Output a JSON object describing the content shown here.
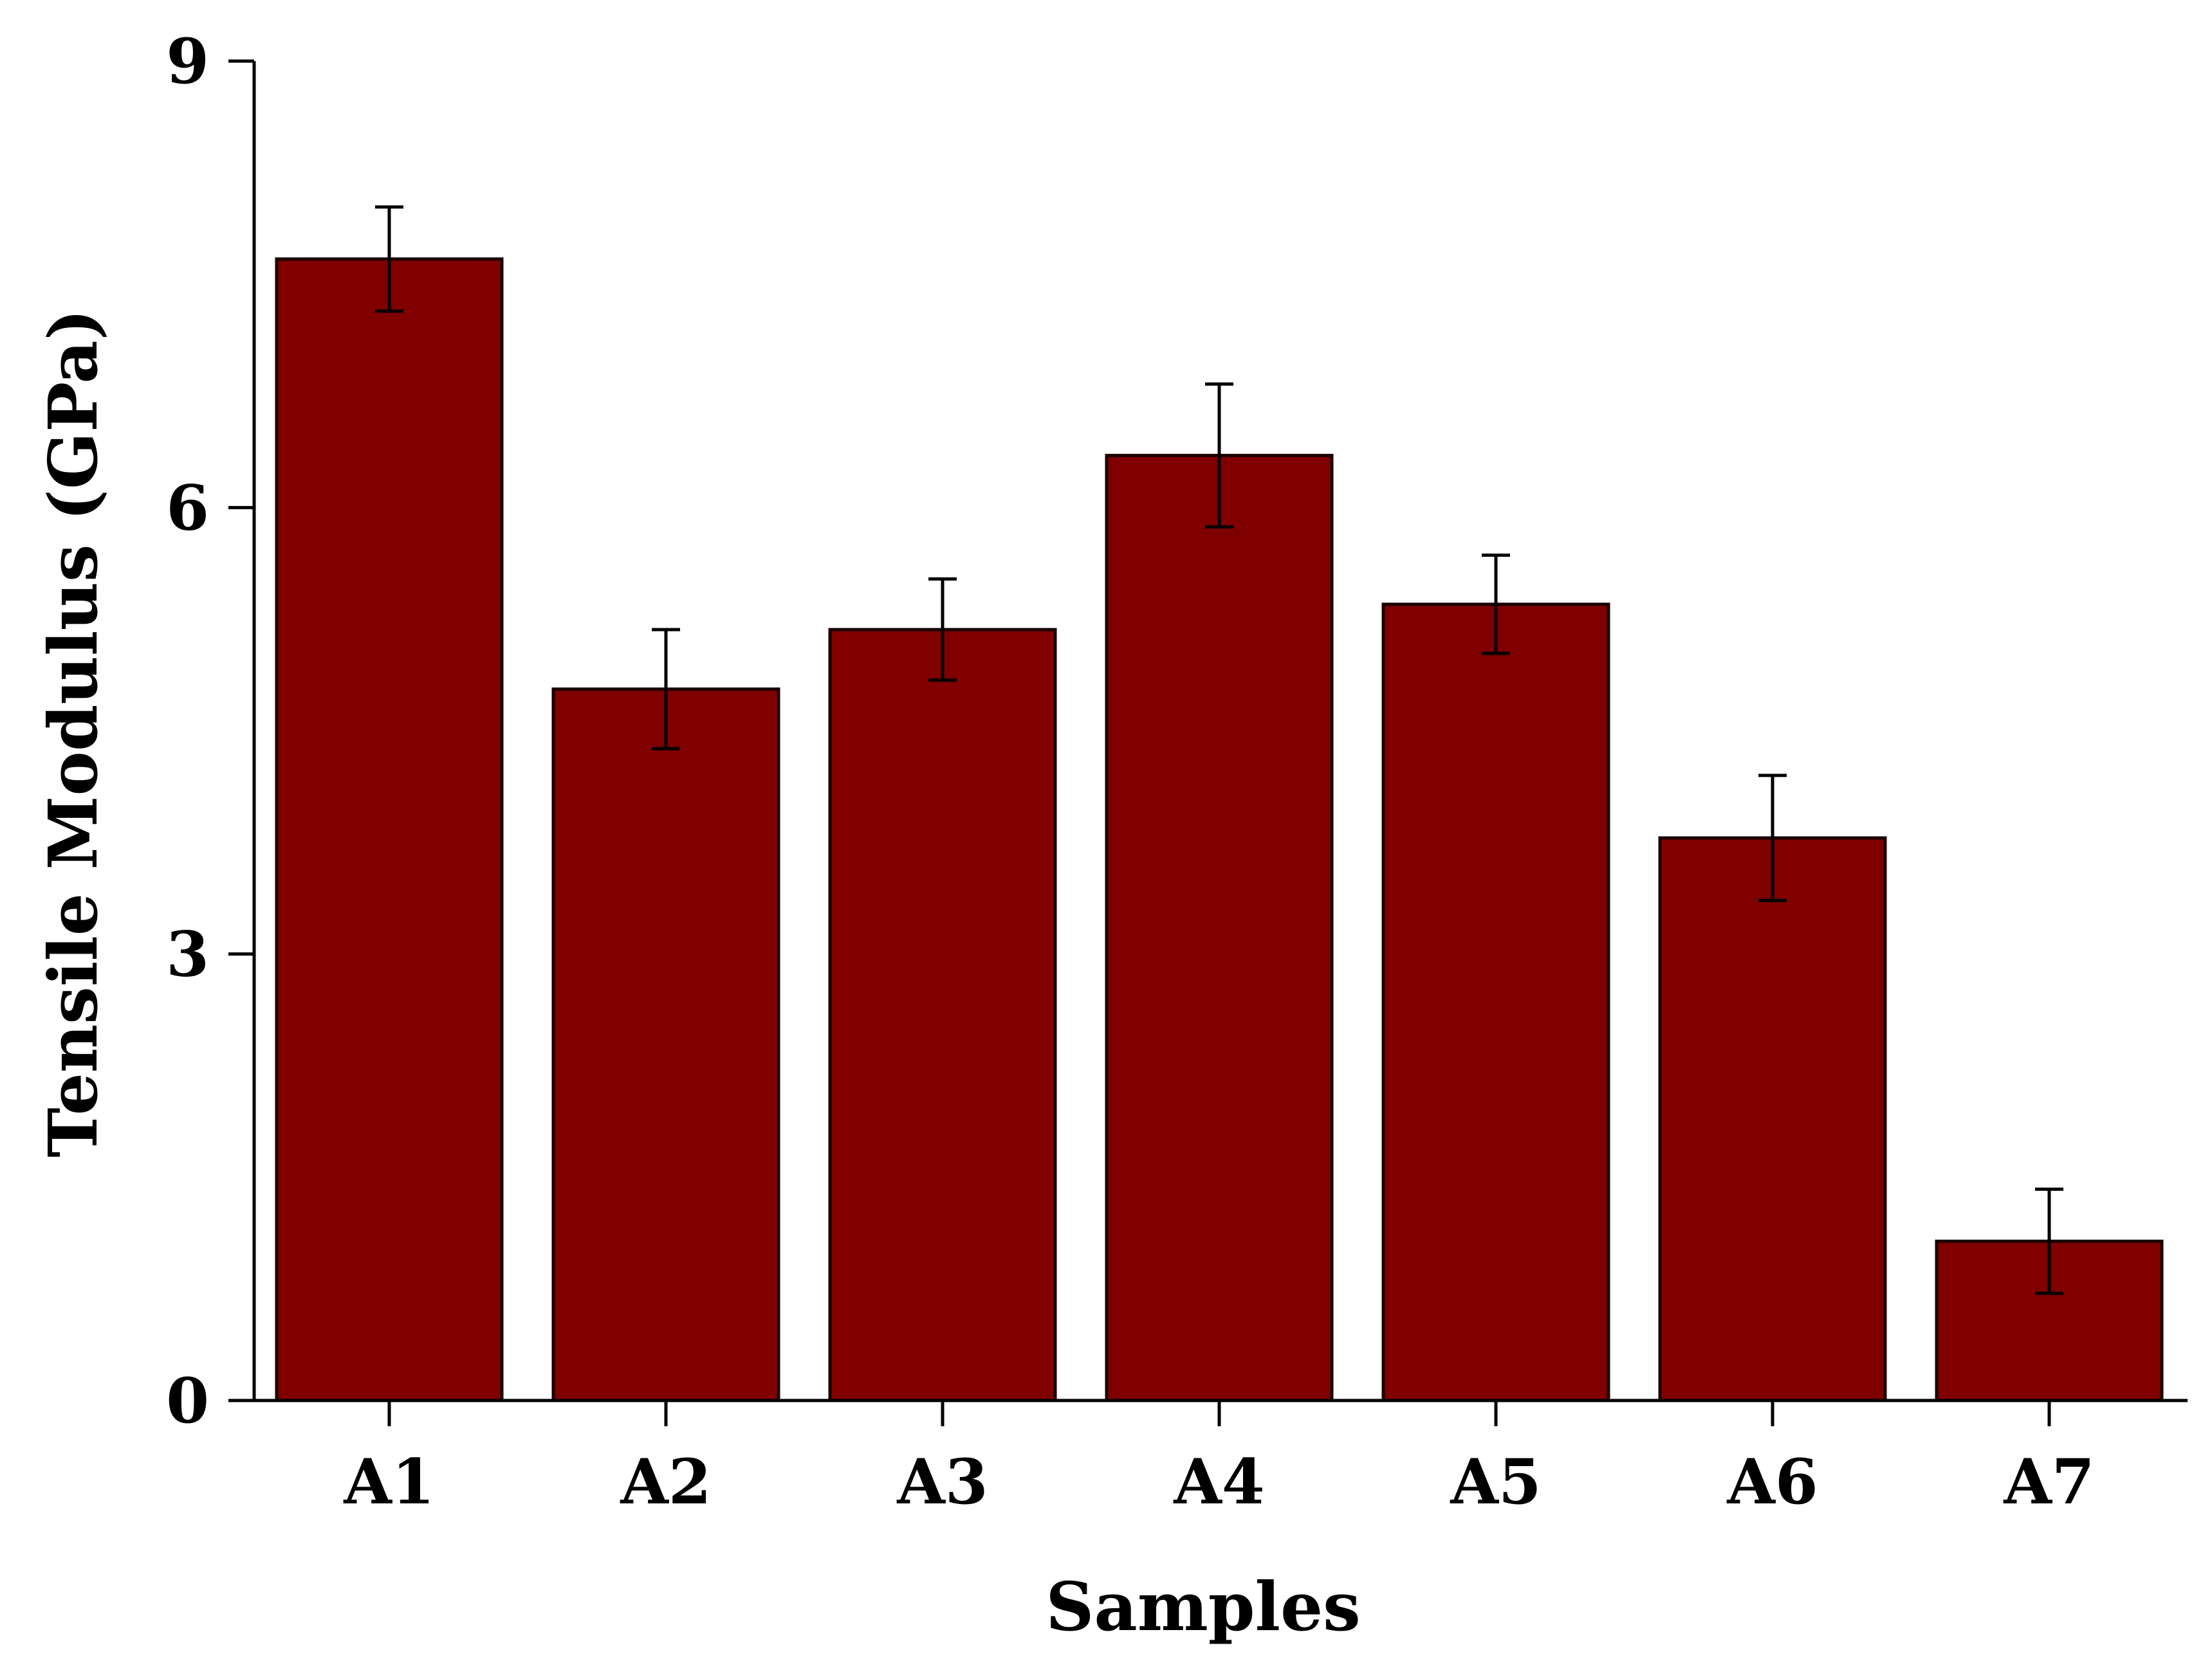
{
  "chart_data": {
    "type": "bar",
    "title": "",
    "xlabel": "Samples",
    "ylabel": "Tensile Modulus (GPa)",
    "categories": [
      "A1",
      "A2",
      "A3",
      "A4",
      "A5",
      "A6",
      "A7"
    ],
    "values": [
      7.67,
      4.78,
      5.18,
      6.35,
      5.35,
      3.78,
      1.07
    ],
    "errors": [
      0.35,
      0.4,
      0.34,
      0.48,
      0.33,
      0.42,
      0.35
    ],
    "ylim": [
      0,
      9
    ],
    "yticks": [
      "0",
      "3",
      "6",
      "9"
    ],
    "grid": false,
    "legend": "none",
    "colors": {
      "bar_fill": "#800000",
      "bar_stroke": "#1a0000",
      "axis": "#000000",
      "error_bar": "#000000"
    }
  }
}
